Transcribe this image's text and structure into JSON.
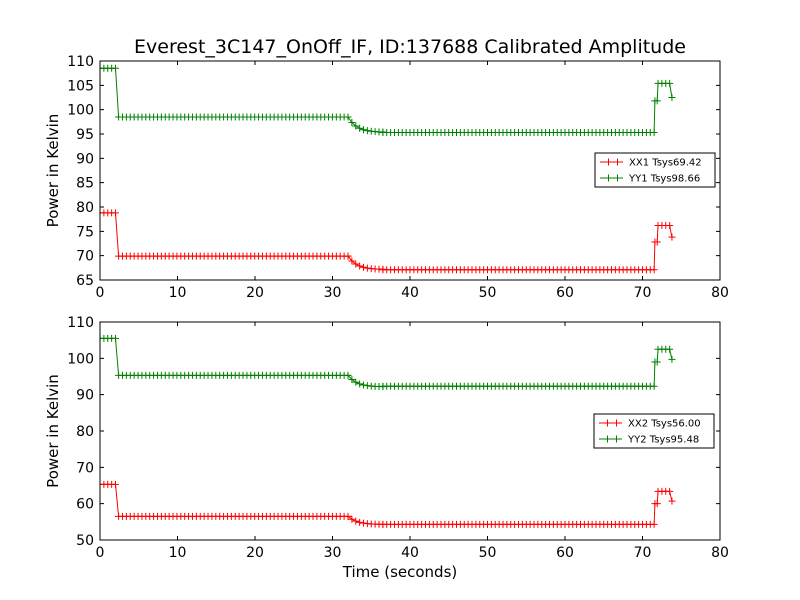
{
  "figure": {
    "title": "Everest_3C147_OnOff_IF, ID:137688 Calibrated Amplitude"
  },
  "chart_data": [
    {
      "type": "line",
      "title": "Everest_3C147_OnOff_IF, ID:137688 Calibrated Amplitude",
      "xlabel": "",
      "ylabel": "Power in Kelvin",
      "xlim": [
        0,
        80
      ],
      "ylim": [
        65,
        110
      ],
      "xticks": [
        0,
        10,
        20,
        30,
        40,
        50,
        60,
        70,
        80
      ],
      "yticks": [
        65,
        70,
        75,
        80,
        85,
        90,
        95,
        100,
        105,
        110
      ],
      "grid": false,
      "legend_position": "right",
      "series": [
        {
          "name": "XX1 Tsys69.42",
          "color": "#ff0000",
          "marker": "plus",
          "segments": [
            {
              "x0": 0.0,
              "x1": 2.0,
              "y": 78.8
            },
            {
              "x0": 2.4,
              "x1": 32.0,
              "y": 69.9
            },
            {
              "x0": 32.0,
              "x1": 36.5,
              "y": 67.2,
              "ramp_from": 69.9
            },
            {
              "x0": 36.5,
              "x1": 71.5,
              "y": 67.1
            },
            {
              "x0": 71.6,
              "x1": 71.9,
              "y": 72.8
            },
            {
              "x0": 72.0,
              "x1": 73.5,
              "y": 76.2
            },
            {
              "x0": 73.8,
              "x1": 73.8,
              "y": 73.8
            }
          ]
        },
        {
          "name": "YY1 Tsys98.66",
          "color": "#008000",
          "marker": "plus",
          "segments": [
            {
              "x0": 0.0,
              "x1": 2.0,
              "y": 108.5
            },
            {
              "x0": 2.4,
              "x1": 32.0,
              "y": 98.5
            },
            {
              "x0": 32.0,
              "x1": 36.5,
              "y": 95.4,
              "ramp_from": 98.5
            },
            {
              "x0": 36.5,
              "x1": 71.5,
              "y": 95.3
            },
            {
              "x0": 71.6,
              "x1": 71.9,
              "y": 101.8
            },
            {
              "x0": 72.0,
              "x1": 73.5,
              "y": 105.4
            },
            {
              "x0": 73.8,
              "x1": 73.8,
              "y": 102.5
            }
          ]
        }
      ]
    },
    {
      "type": "line",
      "title": "",
      "xlabel": "Time (seconds)",
      "ylabel": "Power in Kelvin",
      "xlim": [
        0,
        80
      ],
      "ylim": [
        50,
        110
      ],
      "xticks": [
        0,
        10,
        20,
        30,
        40,
        50,
        60,
        70,
        80
      ],
      "yticks": [
        50,
        60,
        70,
        80,
        90,
        100,
        110
      ],
      "grid": false,
      "legend_position": "right",
      "series": [
        {
          "name": "XX2 Tsys56.00",
          "color": "#ff0000",
          "marker": "plus",
          "segments": [
            {
              "x0": 0.0,
              "x1": 2.0,
              "y": 65.3
            },
            {
              "x0": 2.4,
              "x1": 32.0,
              "y": 56.5
            },
            {
              "x0": 32.0,
              "x1": 36.5,
              "y": 54.3,
              "ramp_from": 56.5
            },
            {
              "x0": 36.5,
              "x1": 71.5,
              "y": 54.3
            },
            {
              "x0": 71.6,
              "x1": 71.9,
              "y": 60.0
            },
            {
              "x0": 72.0,
              "x1": 73.5,
              "y": 63.4
            },
            {
              "x0": 73.8,
              "x1": 73.8,
              "y": 60.7
            }
          ]
        },
        {
          "name": "YY2 Tsys95.48",
          "color": "#008000",
          "marker": "plus",
          "segments": [
            {
              "x0": 0.0,
              "x1": 2.0,
              "y": 105.5
            },
            {
              "x0": 2.4,
              "x1": 32.0,
              "y": 95.3
            },
            {
              "x0": 32.0,
              "x1": 36.5,
              "y": 92.2,
              "ramp_from": 95.3
            },
            {
              "x0": 36.5,
              "x1": 71.5,
              "y": 92.3
            },
            {
              "x0": 71.6,
              "x1": 71.9,
              "y": 99.0
            },
            {
              "x0": 72.0,
              "x1": 73.5,
              "y": 102.5
            },
            {
              "x0": 73.8,
              "x1": 73.8,
              "y": 99.7
            }
          ]
        }
      ]
    }
  ]
}
